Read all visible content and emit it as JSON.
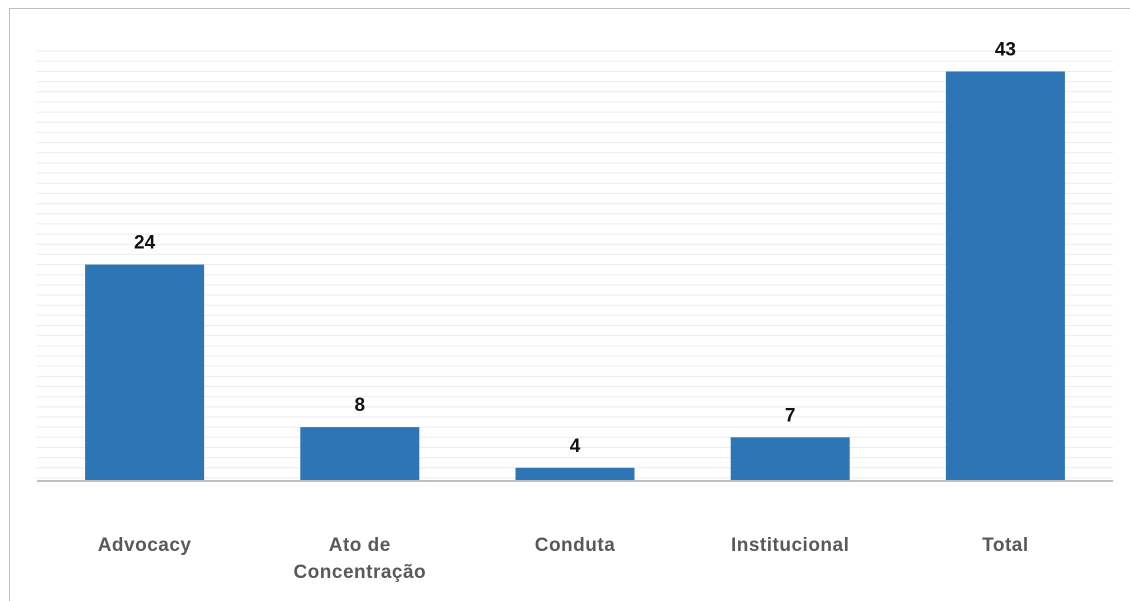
{
  "chart_data": {
    "type": "bar",
    "categories": [
      "Advocacy",
      "Ato de Concentração",
      "Conduta",
      "Institucional",
      "Total"
    ],
    "values": [
      24,
      8,
      4,
      7,
      43
    ],
    "color": "#2e75b6",
    "ylim": [
      2.7,
      45.9
    ],
    "yticks": [
      3,
      4,
      5,
      6,
      7,
      8,
      9,
      10,
      11,
      12,
      13,
      14,
      15,
      16,
      17,
      18,
      19,
      20,
      21,
      22,
      23,
      24,
      25,
      26,
      27,
      28,
      29,
      30,
      31,
      32,
      33,
      34,
      35,
      36,
      37,
      38,
      39,
      40,
      41,
      42,
      43,
      44,
      45
    ],
    "grid": true
  }
}
